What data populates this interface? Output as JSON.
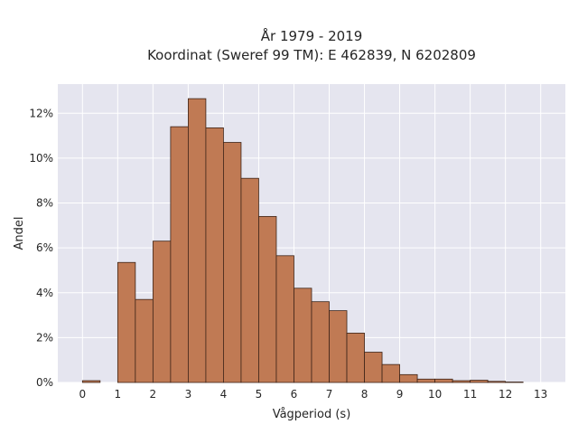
{
  "chart_data": {
    "type": "bar",
    "title_lines": [
      "År 1979 - 2019",
      "Koordinat (Sweref 99 TM): E 462839, N 6202809"
    ],
    "xlabel": "Vågperiod (s)",
    "ylabel": "Andel",
    "bin_width": 0.5,
    "bin_starts": [
      0,
      1,
      1.5,
      2,
      2.5,
      3,
      3.5,
      4,
      4.5,
      5,
      5.5,
      6,
      6.5,
      7,
      7.5,
      8,
      8.5,
      9,
      9.5,
      10,
      10.5,
      11,
      11.5,
      12
    ],
    "values": [
      0.08,
      5.35,
      3.7,
      6.3,
      11.4,
      12.65,
      11.35,
      10.7,
      9.1,
      7.4,
      5.65,
      4.2,
      3.6,
      3.2,
      2.2,
      1.35,
      0.8,
      0.35,
      0.15,
      0.15,
      0.08,
      0.1,
      0.05,
      0.02
    ],
    "x_ticks": [
      "0",
      "1",
      "2",
      "3",
      "4",
      "5",
      "6",
      "7",
      "8",
      "9",
      "10",
      "11",
      "12",
      "13"
    ],
    "y_ticks": [
      "0%",
      "2%",
      "4%",
      "6%",
      "8%",
      "10%",
      "12%"
    ],
    "xlim": [
      -0.7,
      13.7
    ],
    "ylim": [
      0,
      13.3
    ],
    "y_unit": "%",
    "grid": true,
    "legend": "none",
    "colors": {
      "bar_fill": "#c07a54",
      "bar_edge": "#3d2418",
      "plot_bg": "#e5e5ef",
      "grid": "#ffffff"
    }
  }
}
